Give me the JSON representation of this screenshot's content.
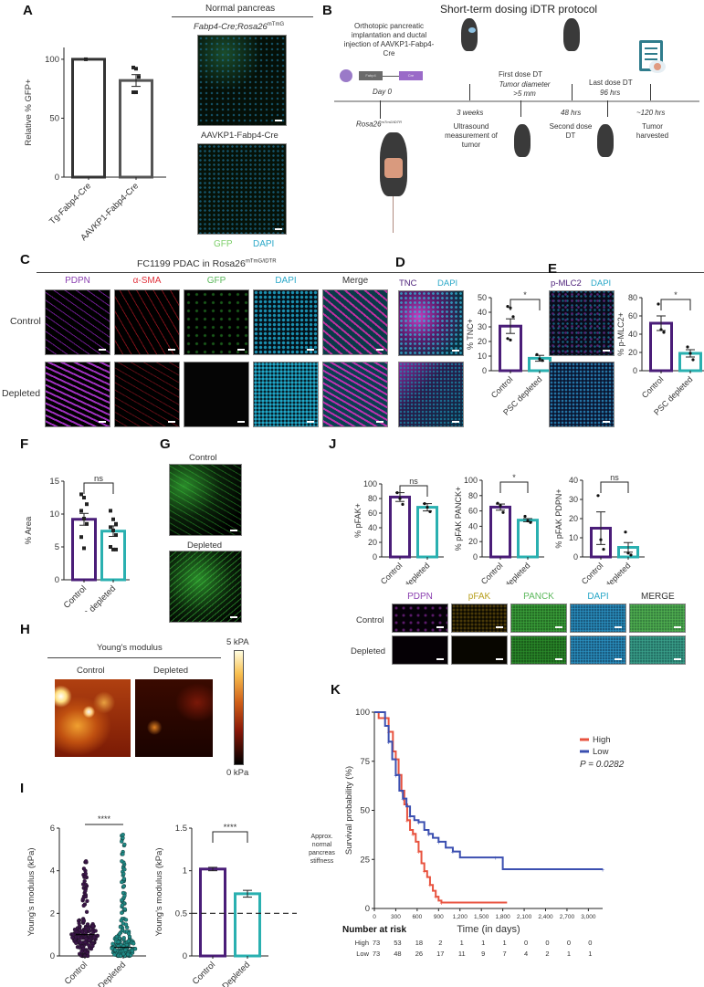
{
  "panels": {
    "A": {
      "label": "A",
      "section_title": "Normal pancreas",
      "image1_title": "Fabp4-Cre;Rosa26",
      "image1_sup": "mTmG",
      "image2_title": "AAVKP1-Fabp4-Cre",
      "legend_gfp": "GFP",
      "legend_dapi": "DAPI"
    },
    "B": {
      "label": "B",
      "title": "Short-term dosing iDTR protocol",
      "step_implant": "Orthotopic pancreatic implantation and ductal injection of AAVKP1-Fabp4-Cre",
      "vector_fabp4": "Fabp4",
      "vector_cre": "Cre",
      "day0": "Day 0",
      "mouse_strain": "Rosa26",
      "mouse_strain_sup": "mTmG/iDTR",
      "t_3weeks": "3 weeks",
      "ultrasound": "Ultrasound measurement of tumor",
      "first_dose": "First dose DT",
      "tumor_diam": "Tumor diameter >5 mm",
      "t_48": "48 hrs",
      "second_dose": "Second dose DT",
      "last_dose": "Last dose DT",
      "t_96": "96 hrs",
      "t_120": "~120 hrs",
      "harvest": "Tumor harvested"
    },
    "C": {
      "label": "C",
      "title": "FC1199 PDAC in Rosa26",
      "title_sup": "mTmG/iDTR",
      "channels": [
        "PDPN",
        "α-SMA",
        "GFP",
        "DAPI",
        "Merge"
      ],
      "channel_colors": [
        "#8a3fb0",
        "#e0303a",
        "#5cb85c",
        "#2aa8c8",
        "#333333"
      ],
      "rows": [
        "Control",
        "Depleted"
      ]
    },
    "D": {
      "label": "D",
      "stain1": "TNC",
      "stain2": "DAPI"
    },
    "E": {
      "label": "E",
      "stain1": "p-MLC2",
      "stain2": "DAPI"
    },
    "F": {
      "label": "F"
    },
    "G": {
      "label": "G",
      "row1": "Control",
      "row2": "Depleted"
    },
    "H": {
      "label": "H",
      "title": "Young's modulus",
      "col1": "Control",
      "col2": "Depleted",
      "scale_max": "5 kPA",
      "scale_min": "0 kPa"
    },
    "I": {
      "label": "I",
      "dashed_note": "Approx. normal pancreas stiffness"
    },
    "J": {
      "label": "J",
      "channels": [
        "PDPN",
        "pFAK",
        "PANCK",
        "DAPI",
        "MERGE"
      ],
      "channel_colors": [
        "#8a3fb0",
        "#b8a020",
        "#5cb85c",
        "#2aa8c8",
        "#333333"
      ],
      "rows": [
        "Control",
        "Depleted"
      ]
    },
    "K": {
      "label": "K"
    }
  },
  "colors": {
    "control": "#4a1d78",
    "depleted": "#2ab0b0",
    "high": "#e8533f",
    "low": "#3b4fb0"
  },
  "chart_data": [
    {
      "id": "A",
      "type": "bar",
      "categories": [
        "Tg-Fabp4-Cre",
        "AAVKP1-Fabp4-Cre"
      ],
      "values": [
        100,
        82
      ],
      "sem": [
        0,
        5
      ],
      "points": [
        [
          100
        ],
        [
          93,
          92,
          85,
          72,
          72
        ]
      ],
      "ylabel": "Relative % GFP+",
      "ylim": [
        0,
        110
      ],
      "yticks": [
        0,
        50,
        100
      ]
    },
    {
      "id": "D",
      "type": "bar",
      "categories": [
        "Control",
        "PSC depleted"
      ],
      "values": [
        30.5,
        8.5
      ],
      "sem": [
        5,
        2
      ],
      "points": [
        [
          44,
          43,
          37,
          22,
          21
        ],
        [
          11,
          8,
          7
        ]
      ],
      "ylabel": "% TNC+",
      "ylim": [
        0,
        50
      ],
      "yticks": [
        0,
        10,
        20,
        30,
        40,
        50
      ],
      "significance": "*"
    },
    {
      "id": "E",
      "type": "bar",
      "categories": [
        "Control",
        "PSC depleted"
      ],
      "values": [
        52,
        19
      ],
      "sem": [
        8,
        4
      ],
      "points": [
        [
          73,
          45,
          42
        ],
        [
          26,
          19,
          12
        ]
      ],
      "ylabel": "% p-MLC2+",
      "ylim": [
        0,
        80
      ],
      "yticks": [
        0,
        20,
        40,
        60,
        80
      ],
      "significance": "*"
    },
    {
      "id": "F",
      "type": "bar",
      "categories": [
        "Control",
        "PSC depleted"
      ],
      "values": [
        9.2,
        7.4
      ],
      "sem": [
        0.9,
        0.8
      ],
      "points": [
        [
          13,
          12.5,
          11.5,
          10.5,
          9.3,
          8.5,
          6.5,
          4.8
        ],
        [
          10.5,
          9.2,
          8.5,
          8,
          7.5,
          6.8,
          5,
          4.6,
          4.6
        ]
      ],
      "ylabel": "% Area",
      "ylim": [
        0,
        15
      ],
      "yticks": [
        0,
        5,
        10,
        15
      ],
      "significance": "ns"
    },
    {
      "id": "I-left",
      "type": "scatter",
      "categories": [
        "Control",
        "Depleted"
      ],
      "ranges": [
        [
          0,
          4.8
        ],
        [
          0,
          5.8
        ]
      ],
      "medians": [
        1.0,
        0.4
      ],
      "ylabel": "Young's modulus (kPa)",
      "ylim": [
        0,
        6
      ],
      "yticks": [
        0,
        2,
        4,
        6
      ],
      "significance": "****"
    },
    {
      "id": "I-right",
      "type": "bar",
      "categories": [
        "Control",
        "Depleted"
      ],
      "values": [
        1.02,
        0.73
      ],
      "sem": [
        0.02,
        0.04
      ],
      "reference_line": 0.5,
      "ylabel": "Young's modulus (kPa)",
      "ylim": [
        0,
        1.5
      ],
      "yticks": [
        0.0,
        0.5,
        1.0,
        1.5
      ],
      "significance": "****"
    },
    {
      "id": "J-1",
      "type": "bar",
      "categories": [
        "Control",
        "PSC depleted"
      ],
      "values": [
        82,
        68
      ],
      "sem": [
        6,
        5
      ],
      "points": [
        [
          88,
          80,
          72
        ],
        [
          73,
          68,
          62
        ]
      ],
      "ylabel": "% pFAK+",
      "ylim": [
        0,
        100
      ],
      "yticks": [
        0,
        20,
        40,
        60,
        80,
        100
      ],
      "significance": "ns"
    },
    {
      "id": "J-2",
      "type": "bar",
      "categories": [
        "Control",
        "PSC depleted"
      ],
      "values": [
        65,
        48
      ],
      "sem": [
        4,
        2
      ],
      "points": [
        [
          70,
          67,
          58
        ],
        [
          53,
          47,
          45
        ]
      ],
      "ylabel": "% pFAK PANCK+",
      "ylim": [
        0,
        100
      ],
      "yticks": [
        0,
        20,
        40,
        60,
        80,
        100
      ],
      "significance": "*"
    },
    {
      "id": "J-3",
      "type": "bar",
      "categories": [
        "Control",
        "PSC depleted"
      ],
      "values": [
        15,
        5
      ],
      "sem": [
        8.5,
        2.5
      ],
      "points": [
        [
          32,
          9,
          4
        ],
        [
          13,
          2,
          1
        ]
      ],
      "ylabel": "% pFAK PDPN+",
      "ylim": [
        0,
        40
      ],
      "yticks": [
        0,
        10,
        20,
        30,
        40
      ],
      "significance": "ns"
    },
    {
      "id": "K",
      "type": "line",
      "title": "",
      "xlabel": "Time (in days)",
      "ylabel": "Survival probability (%)",
      "xlim": [
        0,
        3200
      ],
      "ylim": [
        0,
        100
      ],
      "xticks": [
        0,
        300,
        600,
        900,
        1200,
        1500,
        1800,
        2100,
        2400,
        2700,
        3000
      ],
      "xtick_labels": [
        "0",
        "300",
        "600",
        "900",
        "1,200",
        "1,500",
        "1,800",
        "2,100",
        "2,400",
        "2,700",
        "3,000"
      ],
      "yticks": [
        0,
        25,
        50,
        75,
        100
      ],
      "legend": [
        "High",
        "Low"
      ],
      "annotation": "P = 0.0282",
      "series": [
        {
          "name": "High",
          "x": [
            0,
            60,
            120,
            200,
            260,
            300,
            340,
            380,
            420,
            460,
            500,
            540,
            580,
            620,
            660,
            700,
            740,
            780,
            820,
            860,
            900,
            940,
            1860
          ],
          "y": [
            100,
            97,
            97,
            90,
            80,
            76,
            68,
            60,
            53,
            45,
            40,
            38,
            34,
            29,
            23,
            19,
            16,
            12,
            9,
            6,
            4,
            3,
            3
          ]
        },
        {
          "name": "Low",
          "x": [
            0,
            100,
            150,
            200,
            250,
            300,
            350,
            400,
            450,
            500,
            560,
            620,
            700,
            760,
            820,
            900,
            1000,
            1100,
            1200,
            1700,
            1800,
            3200
          ],
          "y": [
            100,
            100,
            93,
            85,
            76,
            68,
            60,
            56,
            52,
            47,
            45,
            44,
            40,
            38,
            36,
            34,
            31,
            29,
            26,
            26,
            20,
            20
          ]
        }
      ],
      "risk_table": {
        "title": "Number at risk",
        "rows": [
          {
            "label": "High",
            "values": [
              73,
              53,
              18,
              2,
              1,
              1,
              1,
              0,
              0,
              0,
              0
            ]
          },
          {
            "label": "Low",
            "values": [
              73,
              48,
              26,
              17,
              11,
              9,
              7,
              4,
              2,
              1,
              1
            ]
          }
        ]
      }
    }
  ]
}
